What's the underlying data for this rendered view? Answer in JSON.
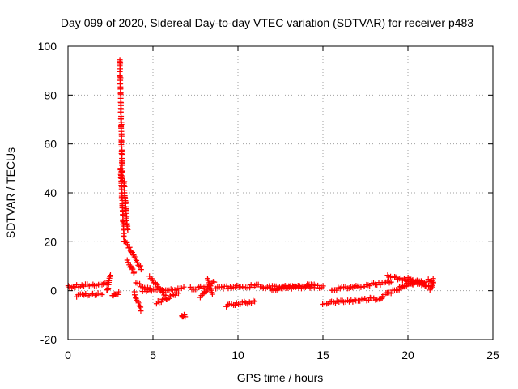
{
  "chart_data": {
    "type": "scatter",
    "title": "Day 099 of 2020, Sidereal Day-to-day VTEC variation (SDTVAR) for receiver p483",
    "xlabel": "GPS time / hours",
    "ylabel": "SDTVAR / TECUs",
    "xlim": [
      0,
      25
    ],
    "ylim": [
      -20,
      100
    ],
    "x_ticks": [
      0,
      5,
      10,
      15,
      20,
      25
    ],
    "y_ticks": [
      -20,
      0,
      20,
      40,
      60,
      80,
      100
    ],
    "x_tick_labels": [
      "0",
      "5",
      "10",
      "15",
      "20",
      "25"
    ],
    "y_tick_labels": [
      "-20",
      "0",
      "20",
      "40",
      "60",
      "80",
      "100"
    ],
    "grid": true,
    "marker": "plus",
    "color": "#ff0000",
    "segments": [
      {
        "x0": 0.0,
        "y0": 1.5,
        "x1": 2.4,
        "y1": 3.0
      },
      {
        "x0": 0.5,
        "y0": -2.0,
        "x1": 2.0,
        "y1": -1.5
      },
      {
        "x0": 2.3,
        "y0": 0.0,
        "x1": 2.5,
        "y1": 6.0
      },
      {
        "x0": 2.6,
        "y0": -1.5,
        "x1": 3.0,
        "y1": -1.0
      },
      {
        "x0": 3.05,
        "y0": 95.0,
        "x1": 3.2,
        "y1": 45.0
      },
      {
        "x0": 3.1,
        "y0": 50.0,
        "x1": 3.3,
        "y1": 20.0
      },
      {
        "x0": 3.3,
        "y0": 45.0,
        "x1": 3.5,
        "y1": 25.0
      },
      {
        "x0": 3.4,
        "y0": 20.0,
        "x1": 4.3,
        "y1": 9.0
      },
      {
        "x0": 3.5,
        "y0": 12.0,
        "x1": 3.9,
        "y1": 7.0
      },
      {
        "x0": 3.9,
        "y0": -1.0,
        "x1": 4.3,
        "y1": -8.0
      },
      {
        "x0": 4.0,
        "y0": 3.0,
        "x1": 4.8,
        "y1": 0.5
      },
      {
        "x0": 4.4,
        "y0": 0.0,
        "x1": 6.8,
        "y1": 1.0
      },
      {
        "x0": 4.8,
        "y0": 6.0,
        "x1": 5.8,
        "y1": -3.0
      },
      {
        "x0": 5.2,
        "y0": -5.0,
        "x1": 6.5,
        "y1": -1.0
      },
      {
        "x0": 6.7,
        "y0": -10.0,
        "x1": 6.9,
        "y1": -10.5
      },
      {
        "x0": 7.2,
        "y0": 1.0,
        "x1": 8.2,
        "y1": 1.5
      },
      {
        "x0": 7.8,
        "y0": -3.0,
        "x1": 8.6,
        "y1": 4.0
      },
      {
        "x0": 8.2,
        "y0": 5.0,
        "x1": 8.5,
        "y1": -1.0
      },
      {
        "x0": 8.7,
        "y0": 1.0,
        "x1": 11.2,
        "y1": 2.0
      },
      {
        "x0": 9.3,
        "y0": -6.0,
        "x1": 11.0,
        "y1": -4.5
      },
      {
        "x0": 11.3,
        "y0": 1.5,
        "x1": 15.0,
        "y1": 1.5
      },
      {
        "x0": 12.0,
        "y0": 0.0,
        "x1": 14.5,
        "y1": 2.5
      },
      {
        "x0": 15.0,
        "y0": -5.0,
        "x1": 18.5,
        "y1": -3.0
      },
      {
        "x0": 15.5,
        "y0": 0.5,
        "x1": 19.0,
        "y1": 3.5
      },
      {
        "x0": 18.5,
        "y0": -2.0,
        "x1": 20.3,
        "y1": 3.0
      },
      {
        "x0": 18.8,
        "y0": 6.0,
        "x1": 21.0,
        "y1": 2.5
      },
      {
        "x0": 19.5,
        "y0": 2.0,
        "x1": 21.5,
        "y1": 4.5
      },
      {
        "x0": 20.0,
        "y0": 5.5,
        "x1": 21.2,
        "y1": 1.5
      },
      {
        "x0": 21.3,
        "y0": 0.0,
        "x1": 21.5,
        "y1": 3.5
      }
    ]
  }
}
